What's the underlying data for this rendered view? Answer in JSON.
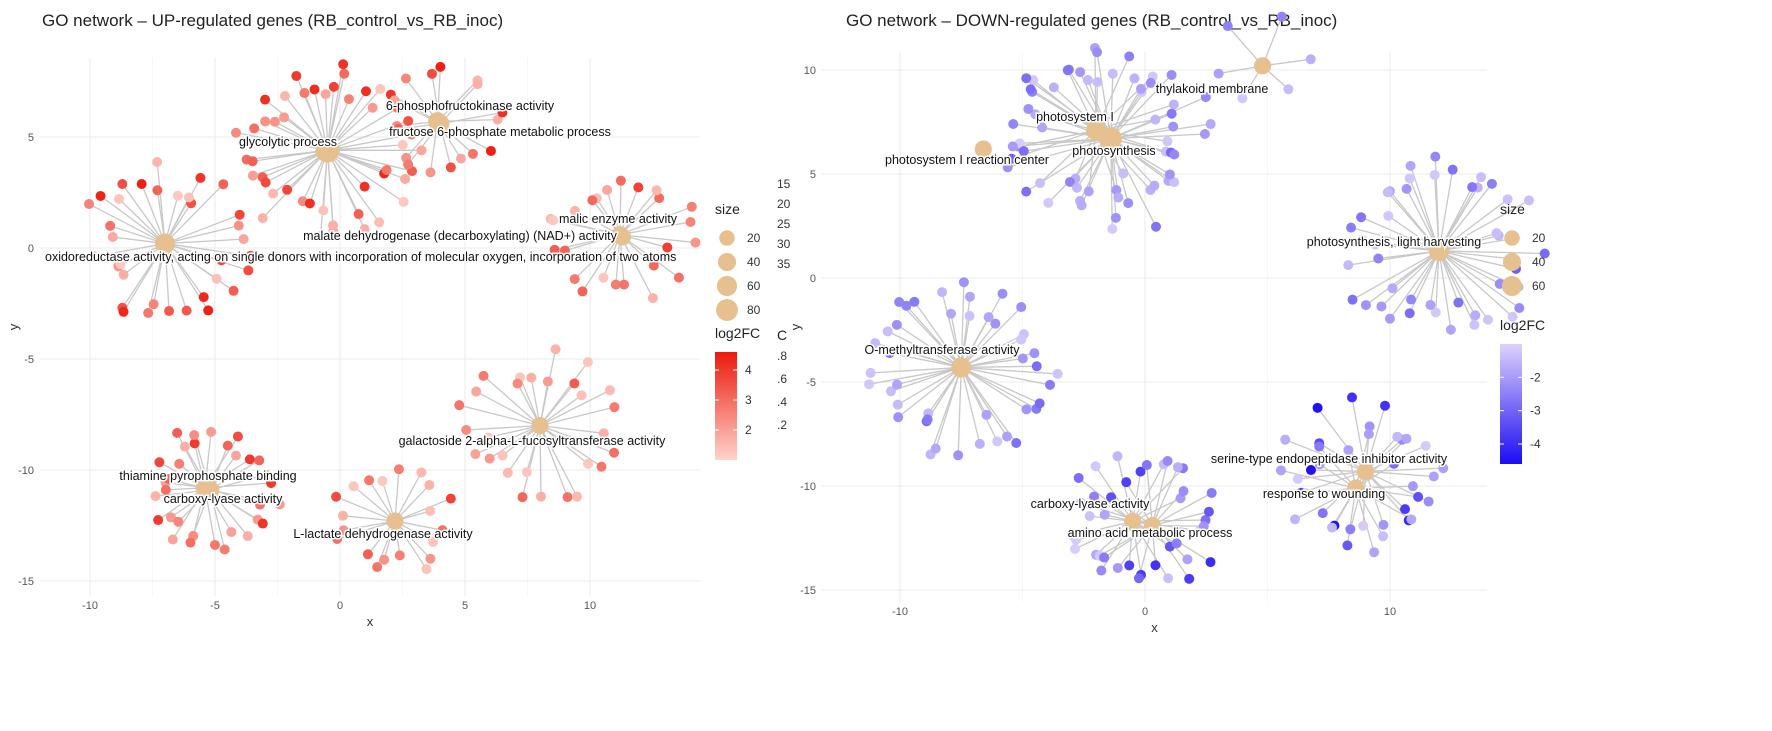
{
  "chart_data": [
    {
      "type": "network",
      "title": "GO network – UP-regulated genes (RB_control_vs_RB_inoc)",
      "xlabel": "x",
      "ylabel": "y",
      "xlim": [
        -12,
        14
      ],
      "ylim": [
        -16,
        8.5
      ],
      "xticks": [
        -10,
        -5,
        0,
        5,
        10
      ],
      "yticks": [
        5,
        0,
        -5,
        -10,
        -15
      ],
      "grid": true,
      "gene_color_range": [
        "#fdd3cb",
        "#ec1a0c"
      ],
      "hubs": [
        {
          "label": "glycolytic process",
          "x": -0.5,
          "y": 4.4,
          "size": 80,
          "genes": 46,
          "radius": 3.9,
          "fc": [
            1.2,
            4.5
          ]
        },
        {
          "label": "6-phosphofructokinase activity",
          "x": 3.9,
          "y": 5.7,
          "size": 30,
          "genes": 10,
          "radius": 2.5,
          "fc": [
            1.5,
            4.5
          ]
        },
        {
          "label": "fructose 6-phosphate metabolic process",
          "x": 4.0,
          "y": 5.6,
          "size": 30,
          "genes": 8,
          "radius": 2.7,
          "fc": [
            1.5,
            4.5
          ]
        },
        {
          "label": "oxidoreductase activity, acting on single donors with incorporation of molecular oxygen, incorporation of two atoms",
          "x": -7.0,
          "y": 0.2,
          "size": 40,
          "genes": 34,
          "radius": 3.6,
          "fc": [
            1.2,
            4.5
          ]
        },
        {
          "label": "malic enzyme activity",
          "x": 11.2,
          "y": 0.6,
          "size": 20,
          "genes": 24,
          "radius": 3.3,
          "fc": [
            1.2,
            4.2
          ]
        },
        {
          "label": "malate dehydrogenase (decarboxylating) (NAD+) activity",
          "x": 11.3,
          "y": 0.5,
          "size": 20,
          "genes": 0,
          "radius": 0,
          "fc": [
            1,
            1
          ]
        },
        {
          "label": "galactoside 2-alpha-L-fucosyltransferase activity",
          "x": 8.0,
          "y": -8.0,
          "size": 20,
          "genes": 28,
          "radius": 3.4,
          "fc": [
            1.2,
            3.5
          ]
        },
        {
          "label": "thiamine pyrophosphate binding",
          "x": -5.4,
          "y": -10.8,
          "size": 30,
          "genes": 16,
          "radius": 2.8,
          "fc": [
            1.5,
            4.5
          ]
        },
        {
          "label": "carboxy-lyase activity",
          "x": -5.2,
          "y": -10.9,
          "size": 30,
          "genes": 16,
          "radius": 2.9,
          "fc": [
            1.5,
            4.5
          ]
        },
        {
          "label": "L-lactate dehydrogenase activity",
          "x": 2.2,
          "y": -12.3,
          "size": 20,
          "genes": 20,
          "radius": 2.6,
          "fc": [
            1.2,
            4.2
          ]
        }
      ],
      "legend": {
        "size_title": "size",
        "size_entries": [
          20,
          40,
          60,
          80
        ],
        "extra_column_1": [
          "15",
          "20",
          "25",
          "30",
          "35"
        ],
        "extra_column_2_title": "C",
        "extra_column_2": [
          ".8",
          ".6",
          ".4",
          ".2"
        ],
        "color_title": "log2FC",
        "color_ticks": [
          4,
          3,
          2
        ],
        "color_range": [
          1,
          4.6
        ]
      }
    },
    {
      "type": "network",
      "title": "GO network – DOWN-regulated genes (RB_control_vs_RB_inoc)",
      "xlabel": "x",
      "ylabel": "y",
      "xlim": [
        -13,
        16.5
      ],
      "ylim": [
        -16,
        11.2
      ],
      "xticks": [
        -10,
        0,
        10
      ],
      "yticks": [
        10,
        5,
        0,
        -5,
        -10,
        -15
      ],
      "grid": true,
      "gene_color_range": [
        "#ded2fb",
        "#1c0cf2"
      ],
      "hubs": [
        {
          "label": "thylakoid membrane",
          "x": 4.8,
          "y": 10.2,
          "size": 20,
          "genes": 6,
          "radius": 2.5,
          "fc": [
            -1.2,
            -2.5
          ]
        },
        {
          "label": "photosystem I",
          "x": -2.0,
          "y": 7.1,
          "size": 40,
          "genes": 20,
          "radius": 3.8,
          "fc": [
            -1.2,
            -3
          ]
        },
        {
          "label": "photosynthesis",
          "x": -1.4,
          "y": 6.7,
          "size": 60,
          "genes": 42,
          "radius": 4.5,
          "fc": [
            -1.1,
            -3
          ]
        },
        {
          "label": "photosystem I reaction center",
          "x": -6.6,
          "y": 6.2,
          "size": 20,
          "genes": 0,
          "radius": 0,
          "fc": [
            -1,
            -1
          ]
        },
        {
          "label": "photosynthesis, light harvesting",
          "x": 12.0,
          "y": 1.3,
          "size": 40,
          "genes": 46,
          "radius": 4.4,
          "fc": [
            -1.2,
            -3.2
          ]
        },
        {
          "label": "O-methyltransferase activity",
          "x": -7.5,
          "y": -4.3,
          "size": 40,
          "genes": 44,
          "radius": 4.2,
          "fc": [
            -1.2,
            -3
          ]
        },
        {
          "label": "serine-type endopeptidase inhibitor activity",
          "x": 9.0,
          "y": -9.3,
          "size": 20,
          "genes": 22,
          "radius": 3.6,
          "fc": [
            -1.1,
            -4.6
          ]
        },
        {
          "label": "response to wounding",
          "x": 8.6,
          "y": -10.1,
          "size": 20,
          "genes": 16,
          "radius": 3.2,
          "fc": [
            -1.1,
            -3.4
          ]
        },
        {
          "label": "carboxy-lyase activity",
          "x": -0.5,
          "y": -11.7,
          "size": 20,
          "genes": 20,
          "radius": 3.2,
          "fc": [
            -1.1,
            -4
          ]
        },
        {
          "label": "amino acid metabolic process",
          "x": 0.3,
          "y": -11.9,
          "size": 20,
          "genes": 20,
          "radius": 3.3,
          "fc": [
            -1.1,
            -4
          ]
        }
      ],
      "legend": {
        "size_title": "size",
        "size_entries": [
          20,
          40,
          60
        ],
        "color_title": "log2FC",
        "color_ticks": [
          -2,
          -3,
          -4
        ],
        "color_range": [
          -1,
          -4.6
        ]
      }
    }
  ],
  "colors": {
    "hub": "#e6c08f",
    "edge": "#c8c8c8",
    "grid": "#ebebeb"
  }
}
